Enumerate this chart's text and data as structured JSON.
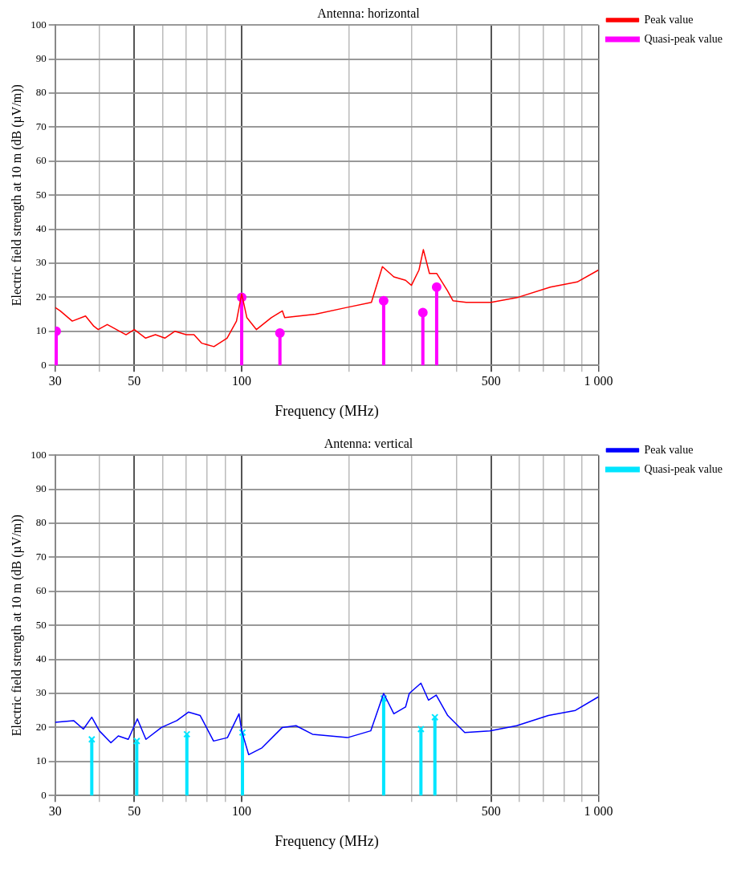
{
  "chart_data": [
    {
      "type": "line",
      "title": "Antenna: horizontal",
      "xlabel": "Frequency (MHz)",
      "ylabel": "Electric field strength at 10 m (dB (µV/m))",
      "log": "x",
      "xlim": [
        30,
        1000
      ],
      "xticks": [
        30,
        {
          "value": 40,
          "label": null
        },
        50,
        {
          "value": 60,
          "label": null
        },
        {
          "value": 70,
          "label": null
        },
        {
          "value": 80,
          "label": null
        },
        {
          "value": 90,
          "label": null
        },
        100,
        {
          "value": 200,
          "label": null
        },
        {
          "value": 300,
          "label": null
        },
        {
          "value": 400,
          "label": null
        },
        500,
        {
          "value": 600,
          "label": null
        },
        {
          "value": 700,
          "label": null
        },
        {
          "value": 800,
          "label": null
        },
        {
          "value": 900,
          "label": null
        },
        {
          "value": 1000,
          "label": "1 000"
        }
      ],
      "ylim": [
        0,
        100
      ],
      "yticks": [
        0,
        10,
        20,
        30,
        40,
        50,
        60,
        70,
        80,
        90,
        100
      ],
      "grid": true,
      "legend": "top right",
      "series": [
        {
          "name": "Peak value",
          "color": "#ff0000",
          "marker": "none",
          "x": [
            30,
            31,
            33.5,
            36.5,
            38.5,
            39.6,
            42,
            47.4,
            50,
            53.8,
            57.3,
            60.9,
            64.9,
            69.9,
            73.5,
            77.3,
            83.6,
            91,
            96.7,
            100,
            103.4,
            110,
            121,
            130,
            132,
            161,
            197,
            231,
            248,
            267,
            288,
            299,
            314,
            323,
            336,
            352,
            377,
            391,
            426,
            500,
            596,
            733,
            872,
            1000
          ],
          "values": [
            17,
            16,
            13,
            14.5,
            11.5,
            10.5,
            12,
            9,
            10.5,
            8,
            9,
            8,
            10,
            9,
            9,
            6.5,
            5.5,
            8,
            13,
            21,
            14,
            10.5,
            14,
            16,
            14,
            15,
            17,
            18.5,
            29,
            26,
            25,
            23.5,
            28,
            34,
            27,
            27,
            22,
            19,
            18.5,
            18.5,
            20,
            23,
            24.5,
            28
          ]
        },
        {
          "name": "Quasi-peak value",
          "type": "lollipop",
          "color": "#ff00ff",
          "marker": "circle",
          "x": [
            30.2,
            100,
            128,
            250,
            322,
            352
          ],
          "values": [
            10,
            20,
            9.5,
            19,
            15.5,
            23
          ]
        }
      ]
    },
    {
      "type": "line",
      "title": "Antenna: vertical",
      "xlabel": "Frequency (MHz)",
      "ylabel": "Electric field strength at 10 m (dB (µV/m))",
      "log": "x",
      "xlim": [
        30,
        1000
      ],
      "xticks": [
        30,
        {
          "value": 40,
          "label": null
        },
        50,
        {
          "value": 60,
          "label": null
        },
        {
          "value": 70,
          "label": null
        },
        {
          "value": 80,
          "label": null
        },
        {
          "value": 90,
          "label": null
        },
        100,
        {
          "value": 200,
          "label": null
        },
        {
          "value": 300,
          "label": null
        },
        {
          "value": 400,
          "label": null
        },
        500,
        {
          "value": 600,
          "label": null
        },
        {
          "value": 700,
          "label": null
        },
        {
          "value": 800,
          "label": null
        },
        {
          "value": 900,
          "label": null
        },
        {
          "value": 1000,
          "label": "1 000"
        }
      ],
      "ylim": [
        0,
        100
      ],
      "yticks": [
        0,
        10,
        20,
        30,
        40,
        50,
        60,
        70,
        80,
        90,
        100
      ],
      "grid": true,
      "legend": "top right",
      "series": [
        {
          "name": "Peak value",
          "color": "#0000ff",
          "marker": "none",
          "x": [
            30,
            33.8,
            36,
            38,
            39.9,
            43,
            45.1,
            48.1,
            51,
            53.9,
            59.6,
            65.8,
            70.9,
            76.5,
            83.4,
            91.2,
            98.3,
            100,
            104.6,
            114,
            130,
            142,
            158,
            198,
            230,
            250,
            267,
            288,
            295,
            318,
            334,
            351,
            378,
            422,
            496,
            590,
            724,
            862,
            1000
          ],
          "values": [
            21.5,
            22,
            19.5,
            23,
            19,
            15.5,
            17.5,
            16.5,
            22.5,
            16.5,
            20,
            22,
            24.5,
            23.5,
            16,
            17,
            24,
            19,
            12,
            14,
            20,
            20.5,
            18,
            17,
            19,
            30,
            24,
            26,
            30,
            33,
            28,
            29.5,
            23.5,
            18.5,
            19,
            20.5,
            23.5,
            25,
            29
          ]
        },
        {
          "name": "Quasi-peak value",
          "type": "lollipop",
          "color": "#00e5ff",
          "marker": "cross",
          "x": [
            38,
            50.8,
            70.2,
            100.5,
            250,
            318,
            348
          ],
          "values": [
            16.5,
            16,
            18,
            18.5,
            28.5,
            19.5,
            23
          ]
        }
      ]
    }
  ]
}
